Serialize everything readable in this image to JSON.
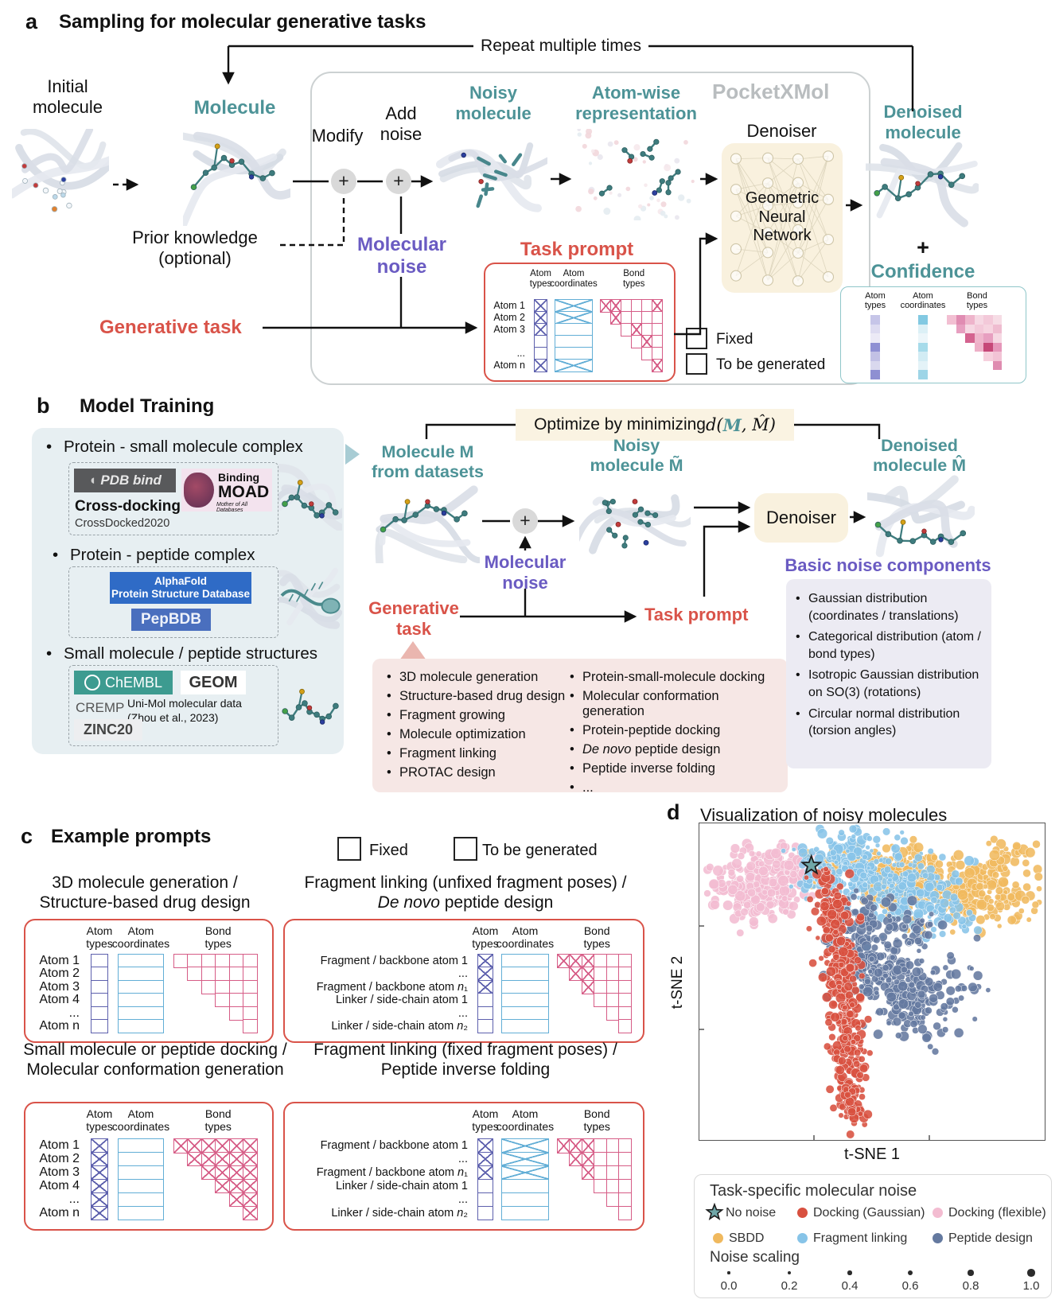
{
  "colors": {
    "teal_text": "#4d9397",
    "purple_text": "#6a5bc2",
    "red_text": "#d95349",
    "pocketxmol_gray": "#b9bdbf",
    "denoiser_cream": "#f9f1de",
    "tasks_pink_box": "#f6e7e5",
    "noise_lavender_box": "#ecebf3",
    "datasets_blue_box": "#e7eff2",
    "matrix_atom_types": "#5d60ad",
    "matrix_atom_coords": "#62aed6",
    "matrix_bond_types": "#d65c86",
    "confidence_border": "#8fc6c9"
  },
  "panel_a": {
    "tag": "a",
    "title": "Sampling for molecular generative tasks",
    "repeat": "Repeat multiple times",
    "initial_molecule": [
      "Initial",
      "molecule"
    ],
    "molecule": "Molecule",
    "modify": "Modify",
    "add_noise": [
      "Add",
      "noise"
    ],
    "noisy_molecule": [
      "Noisy",
      "molecule"
    ],
    "atomwise": [
      "Atom-wise",
      "representation"
    ],
    "pocketxmol": "PocketXMol",
    "denoiser": "Denoiser",
    "gnn": [
      "Geometric",
      "Neural",
      "Network"
    ],
    "denoised": [
      "Denoised",
      "molecule"
    ],
    "plus": "+",
    "prior": [
      "Prior knowledge",
      "(optional)"
    ],
    "molecular_noise": [
      "Molecular",
      "noise"
    ],
    "generative_task": "Generative task",
    "task_prompt": "Task prompt",
    "matrix": {
      "headers": {
        "types": "Atom types",
        "coords": "Atom coordinates",
        "bonds": "Bond types"
      },
      "rows": [
        "Atom 1",
        "Atom 2",
        "Atom 3",
        "",
        "...",
        "Atom n"
      ],
      "types": [
        "X",
        "X",
        "X",
        ".",
        ".",
        "X"
      ],
      "coords": [
        "X",
        "X",
        ".",
        ".",
        ".",
        "X"
      ],
      "bonds": [
        "XX...X",
        "X....",
        ".X..",
        ".X.",
        "..",
        "X"
      ]
    },
    "legend": {
      "fixed": "Fixed",
      "tbg": "To be generated"
    },
    "confidence": {
      "title": "Confidence",
      "headers": {
        "types": "Atom types",
        "coords": "Atom coordinates",
        "bonds": "Bond types"
      },
      "atom_types": [
        "#c6c5e8",
        "#dedcf1",
        "#eceaf6",
        "#8f90d3",
        "#c2c1e5",
        "#d9d8ee",
        "#8e8fd2"
      ],
      "atom_coords": [
        "#82c9e2",
        "#dcf0f6",
        "#ecf6fa",
        "#a6dbea",
        "#d2ecf4",
        "#e4f3f8",
        "#9ed5e7"
      ],
      "bond_rows": [
        [
          "#f2bfd2",
          "#e08cb2",
          "#eeb4cb",
          "#f6d8e3",
          "#f3c9d9",
          "#f6dce5"
        ],
        [
          "#e79fc0",
          "#f6d8e3",
          "#f3c9d9",
          "#f6d4e0",
          "#efbcd0"
        ],
        [
          "#d4638f",
          "#efb6cc",
          "#e79fc0",
          "#f6d8e3"
        ],
        [
          "#eeb0c8",
          "#c64878",
          "#e697ba"
        ],
        [
          "#f6d0dd",
          "#f2c3d5"
        ],
        [
          "#df8cb0"
        ]
      ]
    }
  },
  "panel_b": {
    "tag": "b",
    "title": "Model Training",
    "ds1": {
      "bullet": "Protein - small molecule complex",
      "pdbbind": "PDB bind",
      "moad1": "Binding",
      "moad2": "MOAD",
      "moad3": "Mother of All Databases",
      "crossdocking": "Cross-docking",
      "crossdocked": "CrossDocked2020"
    },
    "ds2": {
      "bullet": "Protein - peptide complex",
      "af1": "AlphaFold",
      "af2": "Protein Structure Database",
      "pepbdb": "PepBDB"
    },
    "ds3": {
      "bullet": "Small molecule / peptide structures",
      "chembl": "ChEMBL",
      "geom": "GEOM",
      "cremp": "CREMP",
      "unimol1": "Uni-Mol molecular data",
      "unimol2": "(Zhou et al., 2023)",
      "zinc": "ZINC20"
    },
    "optimize": {
      "pre": "Optimize by minimizing ",
      "d": "d(",
      "m": "M",
      "rest": ", M̂)"
    },
    "molecule_m": [
      "Molecule M",
      "from datasets"
    ],
    "noisy_m": [
      "Noisy",
      "molecule M̃"
    ],
    "denoised_m": [
      "Denoised",
      "molecule M̂"
    ],
    "molecular_noise": [
      "Molecular",
      "noise"
    ],
    "generative_task": [
      "Generative",
      "task"
    ],
    "task_prompt": "Task prompt",
    "denoiser": "Denoiser",
    "tasks_left": [
      "3D molecule generation",
      "Structure-based drug design",
      "Fragment growing",
      "Molecule optimization",
      "Fragment linking",
      "PROTAC design"
    ],
    "tasks_right": [
      "Protein-small-molecule docking",
      "Molecular conformation generation",
      "Protein-peptide docking",
      "*De novo* peptide design",
      "Peptide inverse folding",
      "..."
    ],
    "noise_heading": "Basic noise components",
    "noise_items": [
      "Gaussian distribution (coordinates / translations)",
      "Categorical distribution (atom / bond types)",
      "Isotropic Gaussian distribution on SO(3) (rotations)",
      "Circular normal distribution (torsion angles)"
    ]
  },
  "panel_c": {
    "tag": "c",
    "title": "Example prompts",
    "legend": {
      "fixed": "Fixed",
      "tbg": "To be generated"
    },
    "prompts": [
      {
        "title": [
          "3D molecule generation /",
          "Structure-based drug design"
        ],
        "headers": {
          "types": "Atom types",
          "coords": "Atom coordinates",
          "bonds": "Bond types"
        },
        "rows": [
          "Atom 1",
          "Atom 2",
          "Atom 3",
          "Atom 4",
          "...",
          "Atom n"
        ],
        "types": [
          ".",
          ".",
          ".",
          ".",
          ".",
          "."
        ],
        "coords": [
          ".",
          ".",
          ".",
          ".",
          ".",
          "."
        ],
        "bonds": [
          "......",
          ".....",
          "....",
          "...",
          "..",
          "."
        ]
      },
      {
        "title": [
          "Fragment linking (unfixed fragment poses) /",
          "*De novo* peptide design"
        ],
        "headers": {
          "types": "Atom types",
          "coords": "Atom coordinates",
          "bonds": "Bond types"
        },
        "rows": [
          "Fragment / backbone atom 1",
          "...",
          "Fragment / backbone atom *n*₁",
          "Linker / side-chain atom 1",
          "...",
          "Linker / side-chain atom *n*₂"
        ],
        "types": [
          "X",
          "X",
          "X",
          ".",
          ".",
          "."
        ],
        "coords": [
          ".",
          ".",
          ".",
          ".",
          ".",
          "."
        ],
        "bonds": [
          "XXX...",
          "XX...",
          "X...",
          "...",
          "..",
          "."
        ]
      },
      {
        "title": [
          "Small molecule or peptide docking /",
          "Molecular conformation generation"
        ],
        "headers": {
          "types": "Atom types",
          "coords": "Atom coordinates",
          "bonds": "Bond types"
        },
        "rows": [
          "Atom 1",
          "Atom 2",
          "Atom 3",
          "Atom 4",
          "...",
          "Atom n"
        ],
        "types": [
          "X",
          "X",
          "X",
          "X",
          "X",
          "X"
        ],
        "coords": [
          ".",
          ".",
          ".",
          ".",
          ".",
          "."
        ],
        "bonds": [
          "XXXXXX",
          "XXXXX",
          "XXXX",
          "XXX",
          "XX",
          "X"
        ]
      },
      {
        "title": [
          "Fragment linking (fixed fragment poses) /",
          "Peptide inverse folding"
        ],
        "headers": {
          "types": "Atom types",
          "coords": "Atom coordinates",
          "bonds": "Bond types"
        },
        "rows": [
          "Fragment / backbone atom 1",
          "...",
          "Fragment / backbone atom *n*₁",
          "Linker / side-chain atom 1",
          "...",
          "Linker / side-chain atom *n*₂"
        ],
        "types": [
          "X",
          "X",
          "X",
          ".",
          ".",
          "."
        ],
        "coords": [
          "X",
          "X",
          "X",
          ".",
          ".",
          "."
        ],
        "bonds": [
          "XXX...",
          "XX...",
          "X...",
          "...",
          "..",
          "."
        ]
      }
    ]
  },
  "panel_d": {
    "tag": "d",
    "title": "Visualization of noisy molecules",
    "xlabel": "t-SNE 1",
    "ylabel": "t-SNE 2",
    "legend": {
      "title": "Task-specific molecular noise",
      "entries": [
        {
          "label": "No noise",
          "marker": "star",
          "color": "#6fa7a8"
        },
        {
          "label": "Docking (Gaussian)",
          "marker": "circle",
          "color": "#d8503f"
        },
        {
          "label": "Docking (flexible)",
          "marker": "circle",
          "color": "#f3bcd1"
        },
        {
          "label": "SBDD",
          "marker": "circle",
          "color": "#f0b95e"
        },
        {
          "label": "Fragment linking",
          "marker": "circle",
          "color": "#87c4e8"
        },
        {
          "label": "Peptide design",
          "marker": "circle",
          "color": "#64799f"
        }
      ],
      "noise_scaling": {
        "label": "Noise scaling",
        "values": [
          "0.0",
          "0.2",
          "0.4",
          "0.6",
          "0.8",
          "1.0"
        ]
      }
    }
  },
  "chart_data": {
    "type": "scatter",
    "title": "Visualization of noisy molecules",
    "xlabel": "t-SNE 1",
    "ylabel": "t-SNE 2",
    "axes_note": "t-SNE embedding; no numeric tick labels shown; marker size encodes noise scaling 0.0-1.0",
    "star_point": {
      "name": "No noise",
      "x": 0.325,
      "y": 0.135,
      "color": "#6fa7a8"
    },
    "series": [
      {
        "name": "Docking (flexible)",
        "color": "#f3bcd1",
        "r": [
          3.5,
          7
        ],
        "blobs": [
          {
            "cx": 0.155,
            "cy": 0.2,
            "sx": 0.07,
            "sy": 0.055,
            "n": 210
          },
          {
            "cx": 0.27,
            "cy": 0.13,
            "sx": 0.045,
            "sy": 0.035,
            "n": 70
          }
        ]
      },
      {
        "name": "SBDD",
        "color": "#f0b95e",
        "r": [
          3,
          7
        ],
        "blobs": [
          {
            "cx": 0.62,
            "cy": 0.2,
            "sx": 0.09,
            "sy": 0.05,
            "n": 170
          },
          {
            "cx": 0.83,
            "cy": 0.22,
            "sx": 0.075,
            "sy": 0.055,
            "n": 150
          },
          {
            "cx": 0.87,
            "cy": 0.1,
            "sx": 0.045,
            "sy": 0.025,
            "n": 20
          },
          {
            "cx": 0.55,
            "cy": 0.12,
            "sx": 0.06,
            "sy": 0.03,
            "n": 40
          },
          {
            "cx": 0.37,
            "cy": 0.13,
            "sx": 0.025,
            "sy": 0.025,
            "n": 15
          }
        ]
      },
      {
        "name": "Fragment linking",
        "color": "#87c4e8",
        "r": [
          2.5,
          6.5
        ],
        "blobs": [
          {
            "cx": 0.44,
            "cy": 0.15,
            "sx": 0.07,
            "sy": 0.05,
            "n": 170
          },
          {
            "cx": 0.57,
            "cy": 0.22,
            "sx": 0.09,
            "sy": 0.06,
            "n": 160
          },
          {
            "cx": 0.48,
            "cy": 0.05,
            "sx": 0.04,
            "sy": 0.02,
            "n": 12
          },
          {
            "cx": 0.7,
            "cy": 0.28,
            "sx": 0.05,
            "sy": 0.04,
            "n": 50
          },
          {
            "cx": 0.33,
            "cy": 0.15,
            "sx": 0.03,
            "sy": 0.04,
            "n": 30
          }
        ]
      },
      {
        "name": "Peptide design",
        "color": "#64799f",
        "r": [
          3,
          6.5
        ],
        "blobs": [
          {
            "cx": 0.53,
            "cy": 0.46,
            "sx": 0.06,
            "sy": 0.05,
            "n": 120
          },
          {
            "cx": 0.64,
            "cy": 0.55,
            "sx": 0.075,
            "sy": 0.065,
            "n": 150
          },
          {
            "cx": 0.44,
            "cy": 0.37,
            "sx": 0.045,
            "sy": 0.04,
            "n": 50
          },
          {
            "cx": 0.58,
            "cy": 0.33,
            "sx": 0.05,
            "sy": 0.03,
            "n": 40
          },
          {
            "cx": 0.47,
            "cy": 0.28,
            "sx": 0.05,
            "sy": 0.035,
            "n": 30
          }
        ]
      },
      {
        "name": "Docking (Gaussian)",
        "color": "#d8503f",
        "r": [
          3,
          6.5
        ],
        "blobs": [
          {
            "cx": 0.385,
            "cy": 0.3,
            "sx": 0.03,
            "sy": 0.05,
            "n": 70
          },
          {
            "cx": 0.41,
            "cy": 0.48,
            "sx": 0.028,
            "sy": 0.07,
            "n": 110
          },
          {
            "cx": 0.43,
            "cy": 0.68,
            "sx": 0.024,
            "sy": 0.07,
            "n": 120
          },
          {
            "cx": 0.44,
            "cy": 0.86,
            "sx": 0.02,
            "sy": 0.055,
            "n": 70
          },
          {
            "cx": 0.36,
            "cy": 0.17,
            "sx": 0.018,
            "sy": 0.03,
            "n": 18
          }
        ]
      }
    ]
  }
}
